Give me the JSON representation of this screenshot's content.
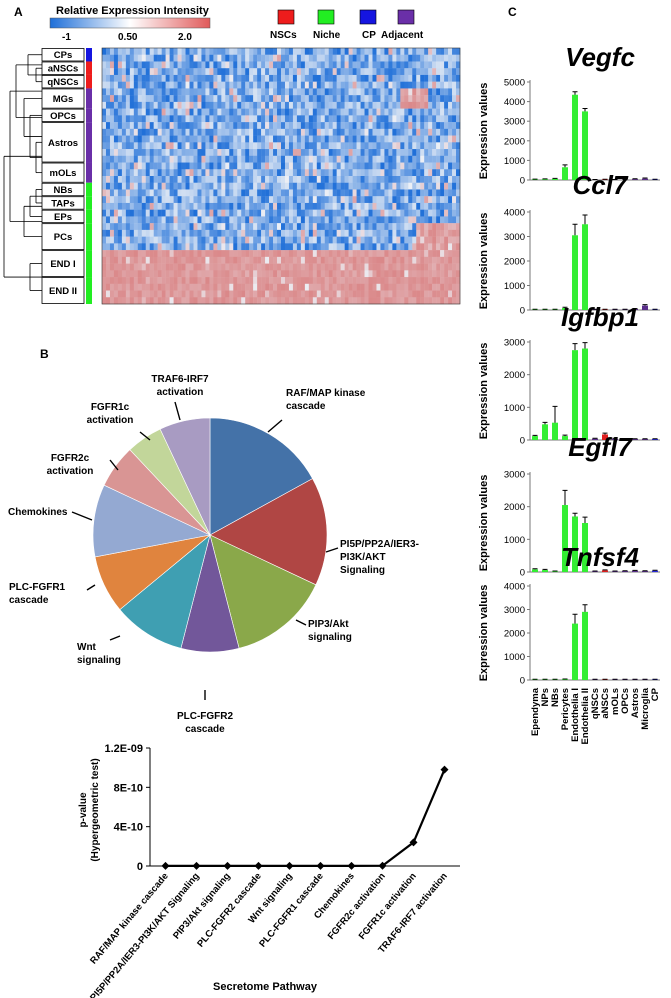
{
  "panels": {
    "a": "A",
    "b": "B",
    "c": "C"
  },
  "heatmap": {
    "scale_title": "Relative Expression Intensity",
    "scale_ticks": [
      "-1",
      "0.50",
      "2.0"
    ],
    "scale_colors": [
      "#1f6fd8",
      "#ffffff",
      "#e05a5a"
    ],
    "legend": [
      {
        "label": "NSCs",
        "color": "#ee1c1c"
      },
      {
        "label": "Niche",
        "color": "#22ee22"
      },
      {
        "label": "CP",
        "color": "#1515e0"
      },
      {
        "label": "Adjacent",
        "color": "#6a2fa8"
      }
    ],
    "rows": [
      {
        "label": "CPs",
        "n": 2,
        "group": "CP"
      },
      {
        "label": "aNSCs",
        "n": 2,
        "group": "NSCs"
      },
      {
        "label": "qNSCs",
        "n": 2,
        "group": "NSCs"
      },
      {
        "label": "MGs",
        "n": 3,
        "group": "Adjacent"
      },
      {
        "label": "OPCs",
        "n": 2,
        "group": "Adjacent"
      },
      {
        "label": "Astros",
        "n": 6,
        "group": "Adjacent"
      },
      {
        "label": "mOLs",
        "n": 3,
        "group": "Adjacent"
      },
      {
        "label": "NBs",
        "n": 2,
        "group": "Niche"
      },
      {
        "label": "TAPs",
        "n": 2,
        "group": "Niche"
      },
      {
        "label": "EPs",
        "n": 2,
        "group": "Niche"
      },
      {
        "label": "PCs",
        "n": 4,
        "group": "Niche"
      },
      {
        "label": "END I",
        "n": 4,
        "group": "Niche"
      },
      {
        "label": "END II",
        "n": 4,
        "group": "Niche"
      }
    ]
  },
  "pie": {
    "title_lines": {
      "traf6": [
        "TRAF6-IRF7",
        "activation"
      ],
      "raf": [
        "RAF/MAP kinase",
        "cascade"
      ],
      "pi5p": [
        "PI5P/PP2A/IER3-",
        "PI3K/AKT",
        "Signaling"
      ],
      "pip3": [
        "PIP3/Akt",
        "signaling"
      ],
      "plcr2": [
        "PLC-FGFR2",
        "cascade"
      ],
      "wnt": [
        "Wnt",
        "signaling"
      ],
      "plcr1": [
        "PLC-FGFR1",
        "cascade"
      ],
      "chemo": [
        "Chemokines"
      ],
      "fgfr2c": [
        "FGFR2c",
        "activation"
      ],
      "fgfr1c": [
        "FGFR1c",
        "activation"
      ]
    },
    "slices": [
      {
        "key": "raf",
        "value": 17,
        "color": "#4472a8"
      },
      {
        "key": "pi5p",
        "value": 15,
        "color": "#b04644"
      },
      {
        "key": "pip3",
        "value": 14,
        "color": "#8aa84a"
      },
      {
        "key": "plcr2",
        "value": 8,
        "color": "#72579a"
      },
      {
        "key": "wnt",
        "value": 10,
        "color": "#3f9fb2"
      },
      {
        "key": "plcr1",
        "value": 8,
        "color": "#e0843e"
      },
      {
        "key": "chemo",
        "value": 10,
        "color": "#94a9d2"
      },
      {
        "key": "fgfr2c",
        "value": 6,
        "color": "#d99594"
      },
      {
        "key": "fgfr1c",
        "value": 5,
        "color": "#c2d69a"
      },
      {
        "key": "traf6",
        "value": 7,
        "color": "#a89bc2"
      }
    ]
  },
  "chart_data": [
    {
      "type": "line",
      "title": "",
      "xlabel": "Secretome Pathway",
      "ylabel_lines": [
        "p-value",
        "(Hypergeometric test)"
      ],
      "categories": [
        "RAF/MAP kinase cascade",
        "PI5P/PP2A/IER3-PI3K/AKT Signaling",
        "PIP3/Akt signaling",
        "PLC-FGFR2 cascade",
        "Wnt signaling",
        "PLC-FGFR1 cascade",
        "Chemokines",
        "FGFR2c activation",
        "FGFR1c  activation",
        "TRAF6-IRF7 activation"
      ],
      "values": [
        1e-12,
        1e-12,
        1e-12,
        1e-12,
        1e-12,
        1e-12,
        1e-12,
        2e-12,
        2.4e-10,
        9.8e-10
      ],
      "ylim": [
        0,
        1.2e-09
      ],
      "yticks": [
        0,
        4e-10,
        8e-10,
        1.2e-09
      ],
      "ytick_labels": [
        "0",
        "4E-10",
        "8E-10",
        "1.2E-09"
      ]
    },
    {
      "type": "bar",
      "title": "Vegfc",
      "ylabel": "Expression values",
      "ylim": [
        0,
        5000
      ],
      "yticks": [
        0,
        1000,
        2000,
        3000,
        4000,
        5000
      ],
      "categories": [
        "Ependyma",
        "NPs",
        "NBs",
        "Pericytes",
        "Endothelia I",
        "Endothelia II",
        "qNSCs",
        "aNSCs",
        "mOLs",
        "OPCs",
        "Astros",
        "Microglia",
        "CP"
      ],
      "values": [
        30,
        40,
        60,
        650,
        4350,
        3500,
        15,
        25,
        15,
        15,
        45,
        70,
        25
      ],
      "errors": [
        15,
        15,
        25,
        120,
        150,
        150,
        10,
        10,
        10,
        10,
        20,
        30,
        10
      ]
    },
    {
      "type": "bar",
      "title": "Ccl7",
      "ylabel": "Expression values",
      "ylim": [
        0,
        4000
      ],
      "yticks": [
        0,
        1000,
        2000,
        3000,
        4000
      ],
      "categories": [
        "Ependyma",
        "NPs",
        "NBs",
        "Pericytes",
        "Endothelia I",
        "Endothelia II",
        "qNSCs",
        "aNSCs",
        "mOLs",
        "OPCs",
        "Astros",
        "Microglia",
        "CP"
      ],
      "values": [
        20,
        20,
        20,
        80,
        3050,
        3500,
        20,
        20,
        20,
        20,
        40,
        180,
        20
      ],
      "errors": [
        10,
        10,
        10,
        30,
        450,
        380,
        10,
        10,
        10,
        10,
        15,
        40,
        10
      ]
    },
    {
      "type": "bar",
      "title": "Igfbp1",
      "ylabel": "Expression values",
      "ylim": [
        0,
        3000
      ],
      "yticks": [
        0,
        1000,
        2000,
        3000
      ],
      "categories": [
        "Ependyma",
        "NPs",
        "NBs",
        "Pericytes",
        "Endothelia I",
        "Endothelia II",
        "qNSCs",
        "aNSCs",
        "mOLs",
        "OPCs",
        "Astros",
        "Microglia",
        "CP"
      ],
      "values": [
        120,
        480,
        530,
        120,
        2750,
        2800,
        40,
        170,
        40,
        30,
        30,
        30,
        30
      ],
      "errors": [
        20,
        60,
        500,
        30,
        200,
        180,
        15,
        40,
        15,
        10,
        10,
        10,
        10
      ]
    },
    {
      "type": "bar",
      "title": "Egfl7",
      "ylabel": "Expression values",
      "ylim": [
        0,
        3000
      ],
      "yticks": [
        0,
        1000,
        2000,
        3000
      ],
      "categories": [
        "Ependyma",
        "NPs",
        "NBs",
        "Pericytes",
        "Endothelia I",
        "Endothelia II",
        "qNSCs",
        "aNSCs",
        "mOLs",
        "OPCs",
        "Astros",
        "Microglia",
        "CP"
      ],
      "values": [
        80,
        60,
        20,
        2050,
        1700,
        1500,
        20,
        50,
        20,
        30,
        40,
        30,
        40
      ],
      "errors": [
        20,
        20,
        10,
        450,
        100,
        180,
        10,
        15,
        10,
        10,
        10,
        10,
        15
      ]
    },
    {
      "type": "bar",
      "title": "Tnfsf4",
      "ylabel": "Expression values",
      "ylim": [
        0,
        4000
      ],
      "yticks": [
        0,
        1000,
        2000,
        3000,
        4000
      ],
      "categories": [
        "Ependyma",
        "NPs",
        "NBs",
        "Pericytes",
        "Endothelia I",
        "Endothelia II",
        "qNSCs",
        "aNSCs",
        "mOLs",
        "OPCs",
        "Astros",
        "Microglia",
        "CP"
      ],
      "values": [
        20,
        20,
        20,
        30,
        2400,
        2900,
        20,
        20,
        20,
        20,
        20,
        20,
        20
      ],
      "errors": [
        10,
        10,
        10,
        10,
        400,
        300,
        10,
        10,
        10,
        10,
        10,
        10,
        10
      ]
    }
  ],
  "bar_colors": {
    "niche": "#33ee33",
    "nsc": "#e02020",
    "cp": "#2a2adc",
    "adjacent": "#5a2e8a",
    "ependyma": "#33ee33"
  },
  "bar_category_groups": [
    "niche",
    "niche",
    "niche",
    "niche",
    "niche",
    "niche",
    "adjacent",
    "nsc",
    "adjacent",
    "adjacent",
    "adjacent",
    "adjacent",
    "cp"
  ]
}
